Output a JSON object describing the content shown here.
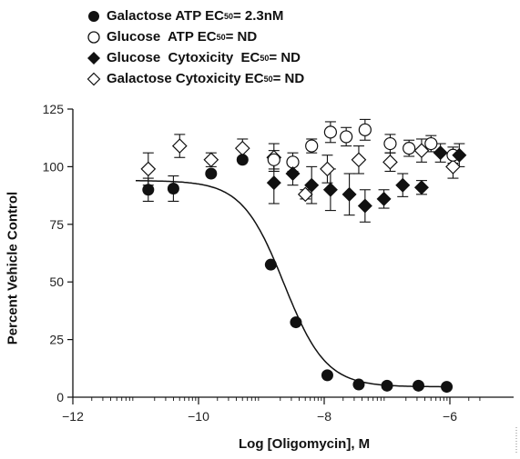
{
  "chart_data": {
    "type": "scatter",
    "xlabel": "Log [Oligomycin], M",
    "ylabel": "Percent Vehicle Control",
    "xlim": [
      -12,
      -5.5
    ],
    "ylim": [
      0,
      125
    ],
    "xticks": [
      -12,
      -10,
      -8,
      -6
    ],
    "xtick_labels": [
      "−12",
      "−10",
      "−8",
      "−6"
    ],
    "yticks": [
      0,
      25,
      50,
      75,
      100,
      125
    ],
    "ytick_labels": [
      "0",
      "25",
      "50",
      "75",
      "100",
      "125"
    ],
    "legend_position": "top-left",
    "series": [
      {
        "name": "Galactose ATP EC50 = 2.3nM",
        "label_prefix": "Galactose ATP EC",
        "label_sub": "50",
        "label_suffix": " = 2.3nM",
        "marker": "filled-circle",
        "x": [
          -10.8,
          -10.4,
          -9.8,
          -9.3,
          -8.85,
          -8.45,
          -7.95,
          -7.45,
          -7.0,
          -6.5,
          -6.05
        ],
        "y": [
          90,
          90.5,
          97,
          103,
          57.5,
          32.5,
          9.5,
          5.5,
          5,
          5,
          4.5
        ],
        "err": [
          5,
          5.5,
          0,
          0,
          0,
          0,
          0,
          0,
          0,
          0,
          0
        ],
        "fit": {
          "bottom": 4.5,
          "top": 94,
          "log_ec50": -8.64,
          "hill": 1.3
        }
      },
      {
        "name": "Glucose ATP EC50 = ND",
        "label_prefix": "Glucose  ATP EC",
        "label_sub": "50",
        "label_suffix": " = ND",
        "marker": "open-circle",
        "x": [
          -8.8,
          -8.5,
          -8.2,
          -7.9,
          -7.65,
          -7.35,
          -6.95,
          -6.65,
          -6.3,
          -5.95
        ],
        "y": [
          103,
          102,
          109,
          115,
          113,
          116,
          110,
          108,
          110,
          105
        ],
        "err": [
          4,
          4,
          3,
          4.5,
          4,
          4.5,
          4,
          3.5,
          3.5,
          3.5
        ]
      },
      {
        "name": "Glucose  Cytoxicity  EC50 = ND",
        "label_prefix": "Glucose  Cytoxicity  EC",
        "label_sub": "50",
        "label_suffix": " = ND",
        "marker": "filled-diamond",
        "x": [
          -8.8,
          -8.5,
          -8.2,
          -7.9,
          -7.6,
          -7.35,
          -7.05,
          -6.75,
          -6.45,
          -6.15,
          -5.85
        ],
        "y": [
          93,
          97,
          92,
          90,
          88,
          83,
          86,
          92,
          91,
          106,
          105
        ],
        "err": [
          9,
          5,
          8,
          9,
          9,
          7,
          4,
          5,
          3,
          4,
          5
        ]
      },
      {
        "name": "Galactose Cytoxicity EC50 = ND",
        "label_prefix": "Galactose Cytoxicity EC",
        "label_sub": "50",
        "label_suffix": " = ND",
        "marker": "open-diamond",
        "x": [
          -10.8,
          -10.3,
          -9.8,
          -9.3,
          -8.8,
          -8.3,
          -7.95,
          -7.45,
          -6.95,
          -6.45,
          -5.95
        ],
        "y": [
          99,
          109,
          103,
          108,
          104,
          88,
          99,
          103,
          102,
          107,
          100
        ],
        "err": [
          7,
          5,
          3,
          4,
          6,
          2,
          6,
          6,
          4,
          5,
          5
        ]
      }
    ]
  }
}
